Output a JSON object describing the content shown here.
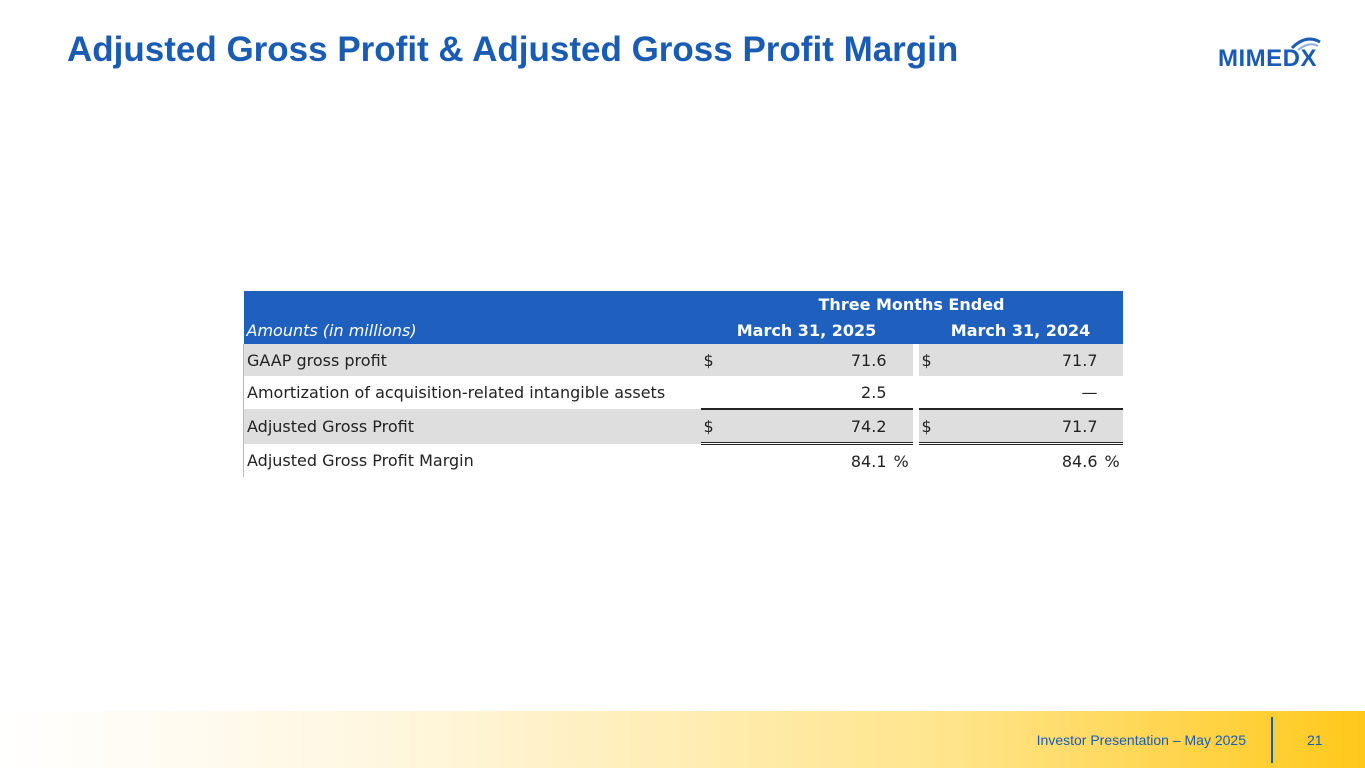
{
  "slide": {
    "title": "Adjusted Gross Profit & Adjusted Gross Profit Margin",
    "logo_text": "MIMEDX"
  },
  "table": {
    "group_header": "Three Months Ended",
    "row_header_label": "Amounts (in millions)",
    "columns": [
      "March 31, 2025",
      "March 31, 2024"
    ],
    "rows": [
      {
        "label": "GAAP gross profit",
        "c1_prefix": "$",
        "c1": "71.6",
        "c2_prefix": "$",
        "c2": "71.7"
      },
      {
        "label": "Amortization of acquisition-related intangible assets",
        "c1_prefix": "",
        "c1": "2.5",
        "c2_prefix": "",
        "c2": "—"
      },
      {
        "label": "Adjusted Gross Profit",
        "c1_prefix": "$",
        "c1": "74.2",
        "c2_prefix": "$",
        "c2": "71.7"
      },
      {
        "label": "Adjusted Gross Profit Margin",
        "c1_prefix": "",
        "c1": "84.1",
        "c1_suffix": "%",
        "c2_prefix": "",
        "c2": "84.6",
        "c2_suffix": "%"
      }
    ]
  },
  "footer": {
    "presentation": "Investor Presentation – May 2025",
    "page_number": "21"
  },
  "colors": {
    "brand_blue": "#1a5cb3",
    "header_blue": "#1f5fbd",
    "row_grey": "#dedede",
    "footer_gold": "#ffc81a"
  }
}
